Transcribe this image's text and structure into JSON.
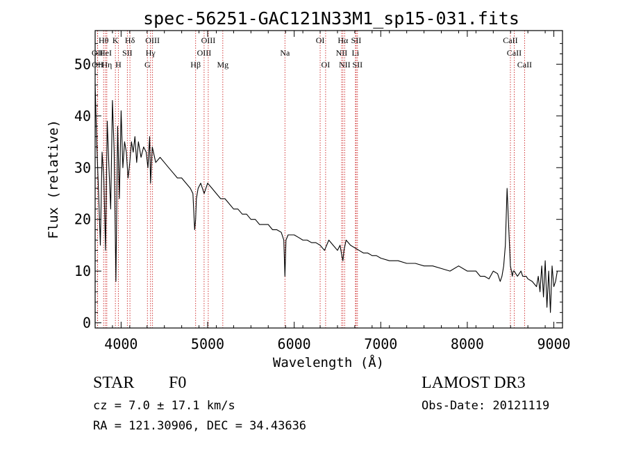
{
  "chart_data": {
    "type": "line",
    "title": "spec-56251-GAC121N33M1_sp15-031.fits",
    "xlabel": "Wavelength (Å)",
    "ylabel": "Flux (relative)",
    "xlim": [
      3700,
      9100
    ],
    "ylim": [
      -1,
      56.5
    ],
    "xticks": [
      4000,
      5000,
      6000,
      7000,
      8000,
      9000
    ],
    "yticks": [
      0,
      10,
      20,
      30,
      40,
      50
    ],
    "series": [
      {
        "name": "spectrum",
        "x": [
          3700,
          3720,
          3740,
          3760,
          3780,
          3800,
          3820,
          3840,
          3860,
          3880,
          3900,
          3920,
          3940,
          3960,
          3980,
          4000,
          4020,
          4040,
          4060,
          4080,
          4100,
          4120,
          4140,
          4160,
          4180,
          4200,
          4230,
          4260,
          4290,
          4310,
          4330,
          4340,
          4360,
          4400,
          4450,
          4500,
          4550,
          4600,
          4650,
          4700,
          4750,
          4800,
          4830,
          4850,
          4861,
          4870,
          4890,
          4920,
          4960,
          5000,
          5050,
          5100,
          5150,
          5200,
          5250,
          5300,
          5350,
          5400,
          5450,
          5500,
          5550,
          5600,
          5650,
          5700,
          5750,
          5800,
          5850,
          5880,
          5893,
          5905,
          5930,
          5960,
          6000,
          6050,
          6100,
          6150,
          6200,
          6250,
          6300,
          6350,
          6400,
          6450,
          6500,
          6530,
          6550,
          6563,
          6575,
          6600,
          6650,
          6700,
          6750,
          6800,
          6850,
          6900,
          6950,
          7000,
          7100,
          7200,
          7300,
          7400,
          7500,
          7600,
          7700,
          7800,
          7900,
          8000,
          8100,
          8150,
          8200,
          8250,
          8300,
          8350,
          8380,
          8400,
          8420,
          8440,
          8460,
          8480,
          8498,
          8510,
          8520,
          8530,
          8542,
          8560,
          8580,
          8600,
          8620,
          8640,
          8662,
          8680,
          8700,
          8750,
          8800,
          8820,
          8840,
          8860,
          8880,
          8900,
          8920,
          8940,
          8960,
          8980,
          9000,
          9020,
          9040
        ],
        "values": [
          46,
          34,
          25,
          15,
          33,
          28,
          14,
          39,
          30,
          22,
          43,
          33,
          8,
          38,
          24,
          41,
          30,
          35,
          33,
          28,
          31,
          35,
          33,
          36,
          31,
          35,
          32,
          34,
          33,
          30,
          36,
          27,
          34,
          31,
          32,
          31,
          30,
          29,
          28,
          28,
          27,
          26,
          25,
          18,
          20,
          24,
          26,
          27,
          25,
          27,
          26,
          25,
          24,
          24,
          23,
          22,
          22,
          21,
          21,
          20,
          20,
          19,
          19,
          19,
          18,
          18,
          17.5,
          16,
          9,
          16,
          17,
          17,
          17,
          16.5,
          16,
          16,
          15.5,
          15.5,
          15,
          14,
          16,
          15,
          14,
          15,
          13,
          12,
          14,
          16,
          15,
          14.5,
          14,
          13.5,
          13.5,
          13,
          13,
          12.5,
          12,
          12,
          11.5,
          11.5,
          11,
          11,
          10.5,
          10,
          11,
          10,
          10,
          9,
          9,
          8.5,
          10,
          9.5,
          8,
          9,
          11,
          15,
          26,
          18,
          11,
          10,
          9,
          10,
          10,
          9.5,
          9,
          9.5,
          10,
          9,
          9,
          9,
          8.5,
          8,
          7,
          9,
          6,
          11,
          5,
          12,
          3,
          10,
          2,
          11,
          7,
          8,
          10
        ]
      }
    ]
  },
  "annotations": {
    "lines": [
      {
        "label": "OII",
        "wavelength": 3727,
        "row": 2
      },
      {
        "label": "OII",
        "wavelength": 3729,
        "row": 3
      },
      {
        "label": "Hθ",
        "wavelength": 3798,
        "row": 1
      },
      {
        "label": "HeI",
        "wavelength": 3820,
        "row": 2
      },
      {
        "label": "Hη",
        "wavelength": 3835,
        "row": 3
      },
      {
        "label": "K",
        "wavelength": 3934,
        "row": 1
      },
      {
        "label": "H",
        "wavelength": 3968,
        "row": 3
      },
      {
        "label": "SII",
        "wavelength": 4072,
        "row": 2
      },
      {
        "label": "Hδ",
        "wavelength": 4102,
        "row": 1
      },
      {
        "label": "G",
        "wavelength": 4304,
        "row": 3
      },
      {
        "label": "Hγ",
        "wavelength": 4340,
        "row": 2
      },
      {
        "label": "OIII",
        "wavelength": 4363,
        "row": 1
      },
      {
        "label": "Hβ",
        "wavelength": 4861,
        "row": 3
      },
      {
        "label": "OIII",
        "wavelength": 4959,
        "row": 2
      },
      {
        "label": "OIII",
        "wavelength": 5007,
        "row": 1
      },
      {
        "label": "Mg",
        "wavelength": 5175,
        "row": 3
      },
      {
        "label": "Na",
        "wavelength": 5893,
        "row": 2
      },
      {
        "label": "OI",
        "wavelength": 6300,
        "row": 1
      },
      {
        "label": "OI",
        "wavelength": 6363,
        "row": 3
      },
      {
        "label": "NII",
        "wavelength": 6548,
        "row": 2
      },
      {
        "label": "Hα",
        "wavelength": 6563,
        "row": 1
      },
      {
        "label": "NII",
        "wavelength": 6583,
        "row": 3
      },
      {
        "label": "Li",
        "wavelength": 6708,
        "row": 2
      },
      {
        "label": "SII",
        "wavelength": 6716,
        "row": 1
      },
      {
        "label": "SII",
        "wavelength": 6731,
        "row": 3
      },
      {
        "label": "CaII",
        "wavelength": 8498,
        "row": 1
      },
      {
        "label": "CaII",
        "wavelength": 8542,
        "row": 2
      },
      {
        "label": "CaII",
        "wavelength": 8662,
        "row": 3
      }
    ]
  },
  "info": {
    "object_class": "STAR",
    "subclass": "F0",
    "survey": "LAMOST DR3",
    "cz": "cz = 7.0 ± 17.1 km/s",
    "obs_date": "Obs-Date: 20121119",
    "radec": "RA = 121.30906, DEC =  34.43636"
  },
  "colors": {
    "spectrum": "#000000",
    "axis": "#000000",
    "line_marker": "#cc2222"
  }
}
